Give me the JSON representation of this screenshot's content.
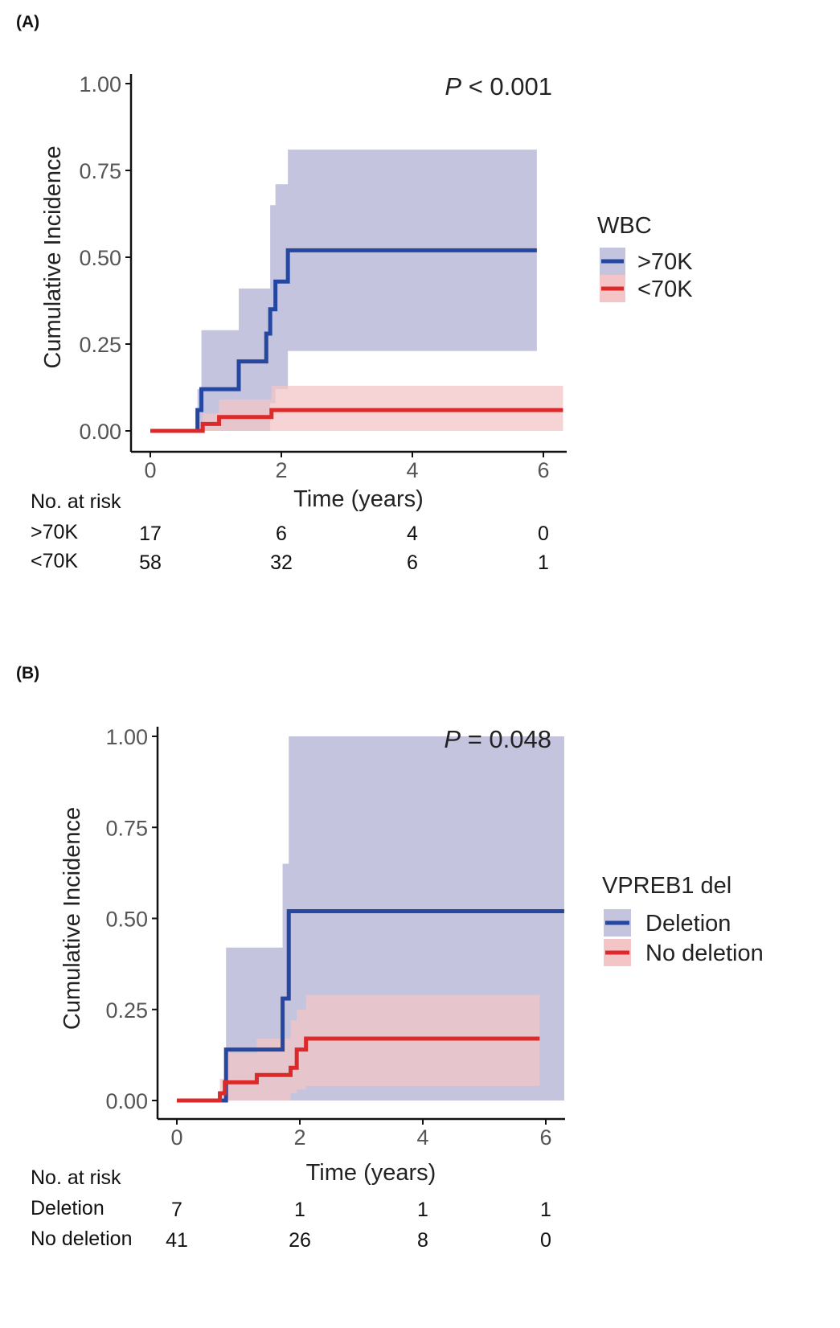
{
  "panels": [
    {
      "label": "(A)",
      "pvalue": "< 0.001",
      "pvalue_prefix": "P",
      "legend_title": "WBC",
      "risk_title": "No. at risk",
      "chart_data": {
        "type": "line",
        "step": true,
        "title": "",
        "xlabel": "Time (years)",
        "ylabel": "Cumulative Incidence",
        "xlim": [
          0,
          6.3
        ],
        "ylim": [
          0,
          1.0
        ],
        "xticks": [
          "0",
          "2",
          "4",
          "6"
        ],
        "xtick_values": [
          0,
          2,
          4,
          6
        ],
        "yticks": [
          "0.00",
          "0.25",
          "0.50",
          "0.75",
          "1.00"
        ],
        "ytick_values": [
          0,
          0.25,
          0.5,
          0.75,
          1.0
        ],
        "grid": false,
        "legend_position": "right",
        "series": [
          {
            "name": ">70K",
            "color": "#2547a0",
            "band_color": "#c4c4de",
            "x": [
              0,
              0.72,
              0.78,
              1.35,
              1.77,
              1.83,
              1.91,
              2.1,
              5.9
            ],
            "y": [
              0,
              0.06,
              0.12,
              0.2,
              0.28,
              0.35,
              0.43,
              0.52,
              0.52
            ],
            "ci_x": [
              0,
              0.72,
              0.78,
              1.35,
              1.77,
              1.83,
              1.91,
              2.1,
              5.9
            ],
            "ci_lower": [
              0,
              0,
              0,
              0,
              0,
              0.08,
              0.12,
              0.23,
              0.23
            ],
            "ci_upper": [
              0,
              0.12,
              0.29,
              0.41,
              0.41,
              0.65,
              0.71,
              0.81,
              0.81
            ]
          },
          {
            "name": "<70K",
            "color": "#dc2a2a",
            "band_color": "#f3c5c7",
            "x": [
              0,
              0.8,
              1.05,
              1.85,
              6.3
            ],
            "y": [
              0,
              0.02,
              0.04,
              0.06,
              0.06
            ],
            "ci_x": [
              0,
              0.8,
              1.05,
              1.85,
              6.3
            ],
            "ci_lower": [
              0,
              0,
              0,
              0,
              0
            ],
            "ci_upper": [
              0,
              0.05,
              0.09,
              0.13,
              0.13
            ]
          }
        ]
      },
      "risk_table": {
        "times": [
          0,
          2,
          4,
          6
        ],
        "rows": [
          {
            "label": ">70K",
            "values": [
              "17",
              "6",
              "4",
              "0"
            ]
          },
          {
            "label": "<70K",
            "values": [
              "58",
              "32",
              "6",
              "1"
            ]
          }
        ]
      }
    },
    {
      "label": "(B)",
      "pvalue": "= 0.048",
      "pvalue_prefix": "P",
      "legend_title": "VPREB1 del",
      "risk_title": "No. at risk",
      "chart_data": {
        "type": "line",
        "step": true,
        "title": "",
        "xlabel": "Time (years)",
        "ylabel": "Cumulative Incidence",
        "xlim": [
          0,
          6.3
        ],
        "ylim": [
          0,
          1.0
        ],
        "xticks": [
          "0",
          "2",
          "4",
          "6"
        ],
        "xtick_values": [
          0,
          2,
          4,
          6
        ],
        "yticks": [
          "0.00",
          "0.25",
          "0.50",
          "0.75",
          "1.00"
        ],
        "ytick_values": [
          0,
          0.25,
          0.5,
          0.75,
          1.0
        ],
        "grid": false,
        "legend_position": "right",
        "series": [
          {
            "name": "Deletion",
            "color": "#2547a0",
            "band_color": "#c4c4de",
            "x": [
              0,
              0.8,
              1.72,
              1.82,
              6.3
            ],
            "y": [
              0,
              0.14,
              0.28,
              0.52,
              0.52
            ],
            "ci_x": [
              0,
              0.8,
              1.72,
              1.82,
              6.3
            ],
            "ci_lower": [
              0,
              0,
              0,
              0,
              0
            ],
            "ci_upper": [
              0,
              0.42,
              0.65,
              1.0,
              1.0
            ]
          },
          {
            "name": "No deletion",
            "color": "#dc2a2a",
            "band_color": "#f3c5c7",
            "x": [
              0,
              0.7,
              0.78,
              1.3,
              1.85,
              1.95,
              2.1,
              5.9
            ],
            "y": [
              0,
              0.02,
              0.05,
              0.07,
              0.09,
              0.14,
              0.17,
              0.17
            ],
            "ci_x": [
              0,
              0.7,
              0.78,
              1.3,
              1.85,
              1.95,
              2.1,
              5.9
            ],
            "ci_lower": [
              0,
              0,
              0,
              0,
              0.02,
              0.03,
              0.04,
              0.04
            ],
            "ci_upper": [
              0,
              0.06,
              0.13,
              0.17,
              0.22,
              0.25,
              0.29,
              0.29
            ]
          }
        ]
      },
      "risk_table": {
        "times": [
          0,
          2,
          4,
          6
        ],
        "rows": [
          {
            "label": "Deletion",
            "values": [
              "7",
              "1",
              "1",
              "1"
            ]
          },
          {
            "label": "No deletion",
            "values": [
              "41",
              "26",
              "8",
              "0"
            ]
          }
        ]
      }
    }
  ]
}
